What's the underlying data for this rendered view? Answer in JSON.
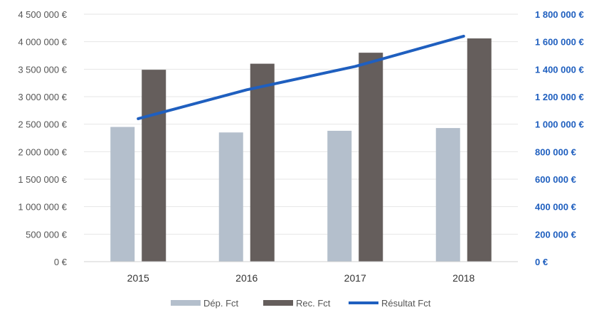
{
  "chart_data": {
    "type": "bar",
    "categories": [
      "2015",
      "2016",
      "2017",
      "2018"
    ],
    "series": [
      {
        "name": "Dép. Fct",
        "type": "bar",
        "axis": "left",
        "color": "#b4bfcc",
        "values": [
          2450000,
          2350000,
          2380000,
          2430000
        ]
      },
      {
        "name": "Rec. Fct",
        "type": "bar",
        "axis": "left",
        "color": "#655e5c",
        "values": [
          3490000,
          3600000,
          3800000,
          4060000
        ]
      },
      {
        "name": "Résultat Fct",
        "type": "line",
        "axis": "right",
        "color": "#1f5fbf",
        "values": [
          1040000,
          1250000,
          1420000,
          1640000
        ]
      }
    ],
    "y_left": {
      "lim": [
        0,
        4500000
      ],
      "ticks": [
        0,
        500000,
        1000000,
        1500000,
        2000000,
        2500000,
        3000000,
        3500000,
        4000000,
        4500000
      ],
      "tick_labels": [
        "0 €",
        "500 000 €",
        "1 000 000 €",
        "1 500 000 €",
        "2 000 000 €",
        "2 500 000 €",
        "3 000 000 €",
        "3 500 000 €",
        "4 000 000 €",
        "4 500 000 €"
      ]
    },
    "y_right": {
      "lim": [
        0,
        1800000
      ],
      "ticks": [
        0,
        200000,
        400000,
        600000,
        800000,
        1000000,
        1200000,
        1400000,
        1600000,
        1800000
      ],
      "tick_labels": [
        "0 €",
        "200 000 €",
        "400 000 €",
        "600 000 €",
        "800 000 €",
        "1 000 000 €",
        "1 200 000 €",
        "1 400 000 €",
        "1 600 000 €",
        "1 800 000 €"
      ],
      "color": "#1f5fbf"
    },
    "grid": true,
    "legend": "bottom"
  }
}
